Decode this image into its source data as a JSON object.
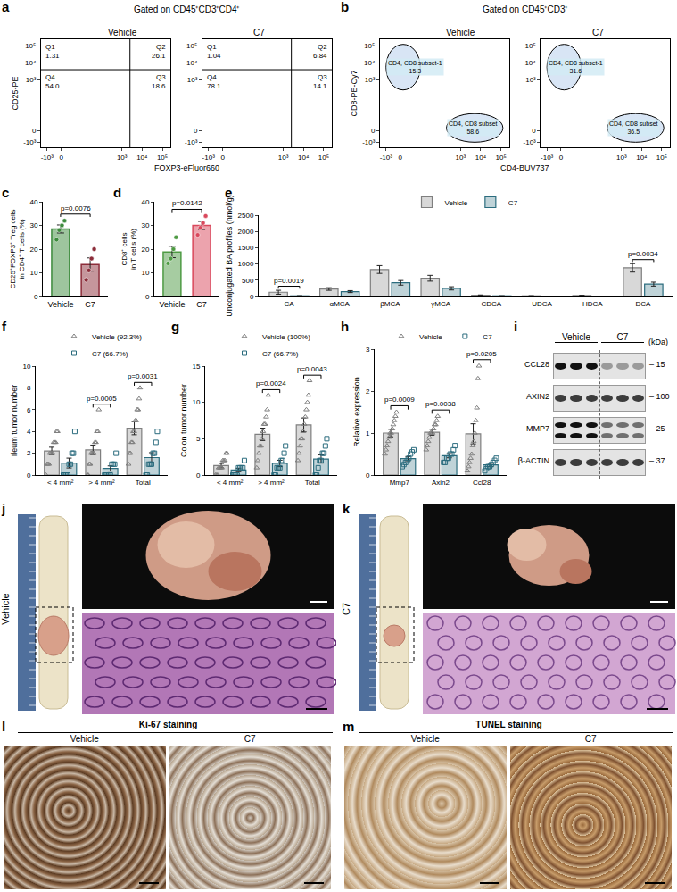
{
  "chart_data": [
    {
      "panel": "a",
      "type": "flow_quadrant",
      "title": "Gated on CD45⁺CD3⁺CD4⁺",
      "x_label": "FOXP3-eFluor660",
      "y_label": "CD25-PE",
      "xlim": [
        -1,
        5.4
      ],
      "ylim": [
        -1,
        5.4
      ],
      "xticks": [
        {
          "value": -0.7,
          "label": "-10³"
        },
        0,
        {
          "value": 3,
          "label": "10³"
        },
        {
          "value": 4,
          "label": "10⁴"
        },
        {
          "value": 5,
          "label": "10⁵"
        }
      ],
      "yticks": [
        {
          "value": -0.7,
          "label": "-10³"
        },
        0,
        {
          "value": 3,
          "label": "10³"
        },
        {
          "value": 4,
          "label": "10⁴"
        },
        {
          "value": 5,
          "label": "10⁵"
        }
      ],
      "gate_x": 3.4,
      "gate_y": 3.6,
      "samples": [
        {
          "name": "Vehicle",
          "quadrants": [
            {
              "label": "Q1",
              "value": 1.31
            },
            {
              "label": "Q2",
              "value": 26.1
            },
            {
              "label": "Q3",
              "value": 18.6
            },
            {
              "label": "Q4",
              "value": 54,
              "value_label": "54.0"
            }
          ]
        },
        {
          "name": "C7",
          "quadrants": [
            {
              "label": "Q1",
              "value": 1.04
            },
            {
              "label": "Q2",
              "value": 6.84
            },
            {
              "label": "Q3",
              "value": 14.1
            },
            {
              "label": "Q4",
              "value": 78.1
            }
          ]
        }
      ]
    },
    {
      "panel": "b",
      "type": "flow_gates",
      "title": "Gated on CD45⁺CD3⁺",
      "x_label": "CD4-BUV737",
      "y_label": "CD8-PE-Cy7",
      "xlim": [
        -1,
        5.4
      ],
      "ylim": [
        -1,
        5.4
      ],
      "xticks": [
        {
          "value": -0.7,
          "label": "-10³"
        },
        0,
        {
          "value": 3,
          "label": "10³"
        },
        {
          "value": 4,
          "label": "10⁴"
        },
        {
          "value": 5,
          "label": "10⁵"
        }
      ],
      "yticks": [
        {
          "value": -0.7,
          "label": "-10³"
        },
        0,
        {
          "value": 3,
          "label": "10³"
        },
        {
          "value": 4,
          "label": "10⁴"
        },
        {
          "value": 5,
          "label": "10⁵"
        }
      ],
      "samples": [
        {
          "name": "Vehicle",
          "gates": [
            {
              "label": "CD4, CD8 subset-1",
              "value": 15.3,
              "x": [
                -0.7,
                1.0
              ],
              "y": [
                2.4,
                5.1
              ]
            },
            {
              "label": "CD4, CD8 subset",
              "value": 58.6,
              "x": [
                2.3,
                5.1
              ],
              "y": [
                -0.7,
                1.0
              ]
            }
          ]
        },
        {
          "name": "C7",
          "gates": [
            {
              "label": "CD4, CD8 subset-1",
              "value": 31.6,
              "x": [
                -0.7,
                1.0
              ],
              "y": [
                2.4,
                5.1
              ]
            },
            {
              "label": "CD4, CD8 subset",
              "value": 36.5,
              "x": [
                2.3,
                5.1
              ],
              "y": [
                -0.7,
                1.0
              ]
            }
          ]
        }
      ]
    },
    {
      "panel": "c",
      "type": "bar",
      "y_label": [
        "CD25⁺FOXP3⁺ Treg cells",
        "in CD4⁺ T cells (%)"
      ],
      "categories": [
        "Vehicle",
        "C7"
      ],
      "values": [
        28.5,
        13.5
      ],
      "sem": [
        1.7,
        2.8
      ],
      "points": [
        [
          24,
          28,
          30,
          32
        ],
        [
          7,
          11,
          16,
          20
        ]
      ],
      "colors": [
        "#3d8b3d",
        "#8c2d3a"
      ],
      "ylim": [
        0,
        40
      ],
      "yticks": [
        0,
        10,
        20,
        30,
        40
      ],
      "annotations": [
        {
          "text": "p=0.0076"
        }
      ]
    },
    {
      "panel": "d",
      "type": "bar",
      "y_label": [
        "CD8⁺ cells",
        "in T cells (%)"
      ],
      "categories": [
        "Vehicle",
        "C7"
      ],
      "values": [
        18.8,
        30
      ],
      "sem": [
        2.4,
        1.7
      ],
      "points": [
        [
          14,
          16,
          20,
          25
        ],
        [
          26,
          29,
          31,
          34
        ]
      ],
      "colors": [
        "#4e9a43",
        "#d9485c"
      ],
      "ylim": [
        0,
        40
      ],
      "yticks": [
        0,
        10,
        20,
        30,
        40
      ],
      "annotations": [
        {
          "text": "p=0.0142"
        }
      ]
    },
    {
      "panel": "e",
      "type": "grouped_bar",
      "y_label": "Unconjugated BA profiles (nmol/g)",
      "categories": [
        "CA",
        "αMCA",
        "βMCA",
        "γMCA",
        "CDCA",
        "UDCA",
        "HDCA",
        "DCA"
      ],
      "series": [
        {
          "name": "Vehicle",
          "color": "#7f7f7f",
          "values": [
            130,
            230,
            830,
            560,
            40,
            20,
            30,
            880
          ],
          "sem": [
            60,
            40,
            120,
            90,
            8,
            5,
            8,
            130
          ]
        },
        {
          "name": "C7",
          "color": "#2b6c7e",
          "values": [
            20,
            150,
            420,
            250,
            20,
            10,
            10,
            380
          ],
          "sem": [
            5,
            30,
            70,
            50,
            5,
            3,
            3,
            60
          ]
        }
      ],
      "ylim": [
        0,
        2500
      ],
      "yticks": [
        0,
        500,
        1000,
        1500,
        2000,
        2500
      ],
      "legend": "top",
      "annotations": [
        {
          "category": "CA",
          "text": "p=0.0019"
        },
        {
          "category": "DCA",
          "text": "p=0.0034"
        }
      ]
    },
    {
      "panel": "f",
      "type": "grouped_bar",
      "y_label": "Ileum tumor number",
      "categories": [
        "< 4 mm²",
        "> 4 mm²",
        "Total"
      ],
      "series": [
        {
          "name": "Vehicle (92.3%)",
          "color": "#7f7f7f",
          "marker": "triangle-up-open",
          "values": [
            2.2,
            2.3,
            4.3
          ],
          "sem": [
            0.35,
            0.45,
            0.6
          ],
          "points": [
            [
              0,
              1,
              1,
              1,
              2,
              2,
              2,
              2,
              3,
              3,
              3,
              4,
              4
            ],
            [
              0,
              0,
              1,
              1,
              2,
              2,
              2,
              2,
              3,
              3,
              4,
              4,
              6
            ],
            [
              1,
              2,
              2,
              3,
              3,
              4,
              4,
              5,
              5,
              6,
              6,
              7,
              8
            ]
          ]
        },
        {
          "name": "C7 (66.7%)",
          "color": "#2b6c7e",
          "marker": "square-open",
          "values": [
            1.1,
            0.6,
            1.6
          ],
          "sem": [
            0.45,
            0.24,
            0.45
          ],
          "points": [
            [
              0,
              0,
              0,
              0,
              1,
              1,
              2,
              2,
              4
            ],
            [
              0,
              0,
              0,
              0,
              0,
              1,
              1,
              1,
              2
            ],
            [
              0,
              0,
              1,
              1,
              1,
              2,
              2,
              3,
              4
            ]
          ]
        }
      ],
      "ylim": [
        0,
        10
      ],
      "yticks": [
        0,
        2,
        4,
        6,
        8,
        10
      ],
      "legend": "top",
      "annotations": [
        {
          "category": "> 4 mm²",
          "text": "p=0.0005"
        },
        {
          "category": "Total",
          "text": "p=0.0031"
        }
      ]
    },
    {
      "panel": "g",
      "type": "grouped_bar",
      "y_label": "Colon tumor number",
      "categories": [
        "< 4 mm²",
        "> 4 mm²",
        "Total"
      ],
      "series": [
        {
          "name": "Vehicle (100%)",
          "color": "#7f7f7f",
          "marker": "triangle-up-open",
          "values": [
            1.3,
            5.6,
            6.9
          ],
          "sem": [
            0.3,
            0.85,
            0.95
          ],
          "points": [
            [
              0,
              0,
              0,
              1,
              1,
              1,
              1,
              2,
              2,
              2,
              3,
              3
            ],
            [
              1,
              2,
              3,
              4,
              4,
              5,
              6,
              7,
              7,
              8,
              9,
              11
            ],
            [
              2,
              3,
              4,
              5,
              5,
              6,
              7,
              8,
              9,
              10,
              11,
              13
            ]
          ]
        },
        {
          "name": "C7 (66.7%)",
          "color": "#2b6c7e",
          "marker": "square-open",
          "values": [
            0.7,
            1.6,
            2.2
          ],
          "sem": [
            0.24,
            0.44,
            0.56
          ],
          "points": [
            [
              0,
              0,
              0,
              0,
              1,
              1,
              1,
              1,
              2
            ],
            [
              0,
              0,
              1,
              1,
              1,
              2,
              2,
              3,
              4
            ],
            [
              0,
              0,
              1,
              2,
              2,
              3,
              3,
              4,
              5
            ]
          ]
        }
      ],
      "ylim": [
        0,
        15
      ],
      "yticks": [
        0,
        5,
        10,
        15
      ],
      "legend": "top",
      "annotations": [
        {
          "category": "> 4 mm²",
          "text": "p=0.0024"
        },
        {
          "category": "Total",
          "text": "p=0.0043"
        }
      ]
    },
    {
      "panel": "h",
      "type": "grouped_bar",
      "y_label": "Relative expression",
      "categories": [
        "Mmp7",
        "Axin2",
        "Ccl28"
      ],
      "series": [
        {
          "name": "Vehicle",
          "color": "#7f7f7f",
          "marker": "triangle-up-open",
          "values": [
            1.0,
            1.02,
            0.98
          ],
          "sem": [
            0.09,
            0.07,
            0.24
          ],
          "points": [
            [
              0.5,
              0.6,
              0.7,
              0.8,
              0.9,
              1.0,
              1.0,
              1.1,
              1.2,
              1.3,
              1.4,
              1.5
            ],
            [
              0.6,
              0.7,
              0.8,
              0.9,
              1.0,
              1.0,
              1.0,
              1.1,
              1.2,
              1.2,
              1.3,
              1.4
            ],
            [
              0.1,
              0.2,
              0.3,
              0.4,
              0.5,
              0.7,
              0.8,
              1.0,
              1.3,
              1.6,
              2.3,
              2.6
            ]
          ]
        },
        {
          "name": "C7",
          "color": "#2b6c7e",
          "marker": "square-open",
          "values": [
            0.39,
            0.46,
            0.24
          ],
          "sem": [
            0.05,
            0.05,
            0.04
          ],
          "points": [
            [
              0.2,
              0.25,
              0.3,
              0.35,
              0.4,
              0.5,
              0.55,
              0.6
            ],
            [
              0.3,
              0.3,
              0.4,
              0.4,
              0.5,
              0.5,
              0.6,
              0.7
            ],
            [
              0.1,
              0.15,
              0.2,
              0.2,
              0.25,
              0.3,
              0.35,
              0.4
            ]
          ]
        }
      ],
      "ylim": [
        0,
        3
      ],
      "yticks": [
        0,
        1,
        2,
        3
      ],
      "legend": "top",
      "annotations": [
        {
          "category": "Mmp7",
          "text": "p=0.0009"
        },
        {
          "category": "Axin2",
          "text": "p=0.0038"
        },
        {
          "category": "Ccl28",
          "text": "p=0.0205"
        }
      ]
    }
  ],
  "figure": {
    "blot": {
      "panel": "i",
      "groups": [
        "Vehicle",
        "C7"
      ],
      "lanes": [
        3,
        3
      ],
      "unit": "(kDa)",
      "rows": [
        {
          "protein": "CCL28",
          "kda": 15
        },
        {
          "protein": "AXIN2",
          "kda": 100
        },
        {
          "protein": "MMP7",
          "kda": 25
        },
        {
          "protein": "β-ACTIN",
          "kda": 37
        }
      ]
    },
    "photos": [
      {
        "panel": "j",
        "label": "Vehicle"
      },
      {
        "panel": "k",
        "label": "C7"
      }
    ],
    "staining": [
      {
        "panel": "l",
        "title": "Ki-67 staining",
        "groups": [
          "Vehicle",
          "C7"
        ]
      },
      {
        "panel": "m",
        "title": "TUNEL staining",
        "groups": [
          "Vehicle",
          "C7"
        ]
      }
    ]
  }
}
